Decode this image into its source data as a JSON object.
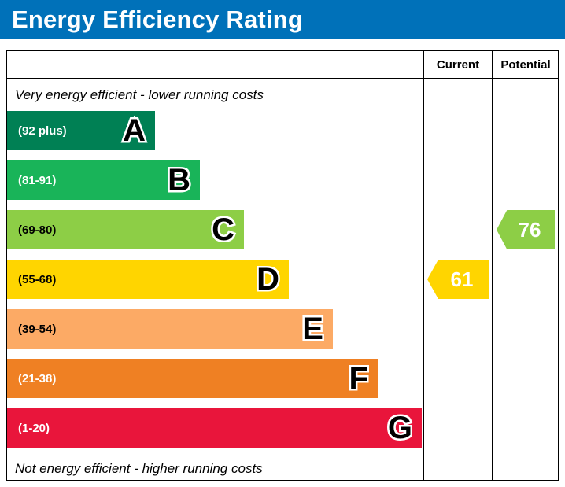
{
  "title": "Energy Efficiency Rating",
  "header": {
    "current": "Current",
    "potential": "Potential"
  },
  "notes": {
    "top": "Very energy efficient - lower running costs",
    "bottom": "Not energy efficient - higher running costs"
  },
  "chart_data": {
    "type": "bar",
    "title": "Energy Efficiency Rating",
    "orientation": "horizontal",
    "bands": [
      {
        "letter": "A",
        "range": "(92 plus)",
        "color": "#008054",
        "label_color": "#ffffff",
        "width_pct": 35.6
      },
      {
        "letter": "B",
        "range": "(81-91)",
        "color": "#19b459",
        "label_color": "#ffffff",
        "width_pct": 46.4
      },
      {
        "letter": "C",
        "range": "(69-80)",
        "color": "#8dce46",
        "label_color": "#000000",
        "width_pct": 57.0
      },
      {
        "letter": "D",
        "range": "(55-68)",
        "color": "#ffd500",
        "label_color": "#000000",
        "width_pct": 67.8
      },
      {
        "letter": "E",
        "range": "(39-54)",
        "color": "#fcaa65",
        "label_color": "#000000",
        "width_pct": 78.4
      },
      {
        "letter": "F",
        "range": "(21-38)",
        "color": "#ef8023",
        "label_color": "#ffffff",
        "width_pct": 89.2
      },
      {
        "letter": "G",
        "range": "(1-20)",
        "color": "#e9153b",
        "label_color": "#ffffff",
        "width_pct": 99.8
      }
    ],
    "current": {
      "value": 61,
      "band": "D",
      "color": "#ffd500"
    },
    "potential": {
      "value": 76,
      "band": "C",
      "color": "#8dce46"
    }
  }
}
